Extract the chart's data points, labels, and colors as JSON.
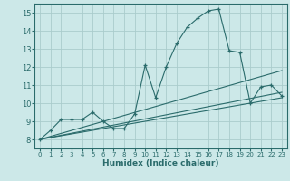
{
  "xlabel": "Humidex (Indice chaleur)",
  "bg_color": "#cce8e8",
  "grid_color": "#aacccc",
  "line_color": "#2a6b6b",
  "xlim": [
    -0.5,
    23.5
  ],
  "ylim": [
    7.5,
    15.5
  ],
  "yticks": [
    8,
    9,
    10,
    11,
    12,
    13,
    14,
    15
  ],
  "xticks": [
    0,
    1,
    2,
    3,
    4,
    5,
    6,
    7,
    8,
    9,
    10,
    11,
    12,
    13,
    14,
    15,
    16,
    17,
    18,
    19,
    20,
    21,
    22,
    23
  ],
  "main_x": [
    0,
    1,
    2,
    3,
    4,
    5,
    6,
    7,
    8,
    9,
    10,
    11,
    12,
    13,
    14,
    15,
    16,
    17,
    18,
    19,
    20,
    21,
    22,
    23
  ],
  "main_y": [
    8.0,
    8.5,
    9.1,
    9.1,
    9.1,
    9.5,
    9.0,
    8.6,
    8.6,
    9.4,
    12.1,
    10.3,
    12.0,
    13.3,
    14.2,
    14.7,
    15.1,
    15.2,
    12.9,
    12.8,
    10.0,
    10.9,
    11.0,
    10.4
  ],
  "line1": [
    [
      0,
      8.0
    ],
    [
      23,
      10.3
    ]
  ],
  "line2": [
    [
      0,
      8.0
    ],
    [
      23,
      10.6
    ]
  ],
  "line3": [
    [
      0,
      8.0
    ],
    [
      23,
      11.8
    ]
  ]
}
